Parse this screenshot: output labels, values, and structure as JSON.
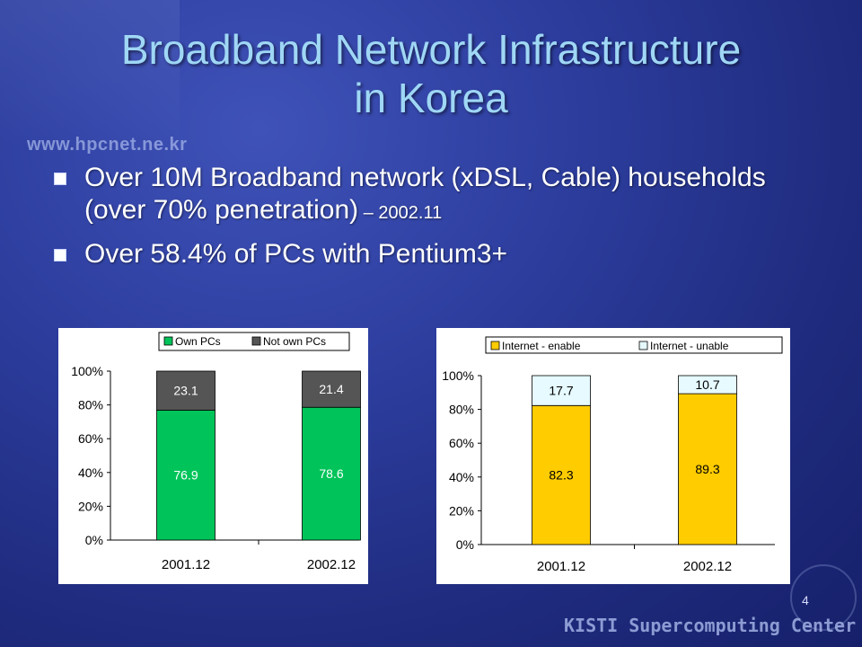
{
  "slide": {
    "title_line1": "Broadband Network Infrastructure",
    "title_line2": "in Korea",
    "bullets": [
      {
        "text": "Over 10M Broadband network (xDSL, Cable) households (over 70% penetration)",
        "note": " – 2002.11"
      },
      {
        "text": "Over 58.4% of PCs with Pentium3+",
        "note": ""
      }
    ],
    "watermark_url": "www.hpcnet.ne.kr",
    "footer": "KISTI Supercomputing Center",
    "page_number": "4"
  },
  "colors": {
    "green": "#00c45a",
    "dark_gray": "#555555",
    "yellow": "#ffcc00",
    "light_cyan": "#e6faff"
  },
  "chart_data": [
    {
      "type": "bar",
      "stacked": true,
      "categories": [
        "2001.12",
        "2002.12"
      ],
      "series": [
        {
          "name": "Own PCs",
          "values": [
            76.9,
            78.6
          ],
          "color": "#00c45a"
        },
        {
          "name": "Not own PCs",
          "values": [
            23.1,
            21.4
          ],
          "color": "#555555"
        }
      ],
      "ylim": [
        0,
        100
      ],
      "yticks": [
        "0%",
        "20%",
        "40%",
        "60%",
        "80%",
        "100%"
      ],
      "legend": "top",
      "data_labels": true
    },
    {
      "type": "bar",
      "stacked": true,
      "categories": [
        "2001.12",
        "2002.12"
      ],
      "series": [
        {
          "name": "Internet - enable",
          "values": [
            82.3,
            89.3
          ],
          "color": "#ffcc00"
        },
        {
          "name": "Internet - unable",
          "values": [
            17.7,
            10.7
          ],
          "color": "#e6faff"
        }
      ],
      "ylim": [
        0,
        100
      ],
      "yticks": [
        "0%",
        "20%",
        "40%",
        "60%",
        "80%",
        "100%"
      ],
      "legend": "top",
      "data_labels": true
    }
  ]
}
